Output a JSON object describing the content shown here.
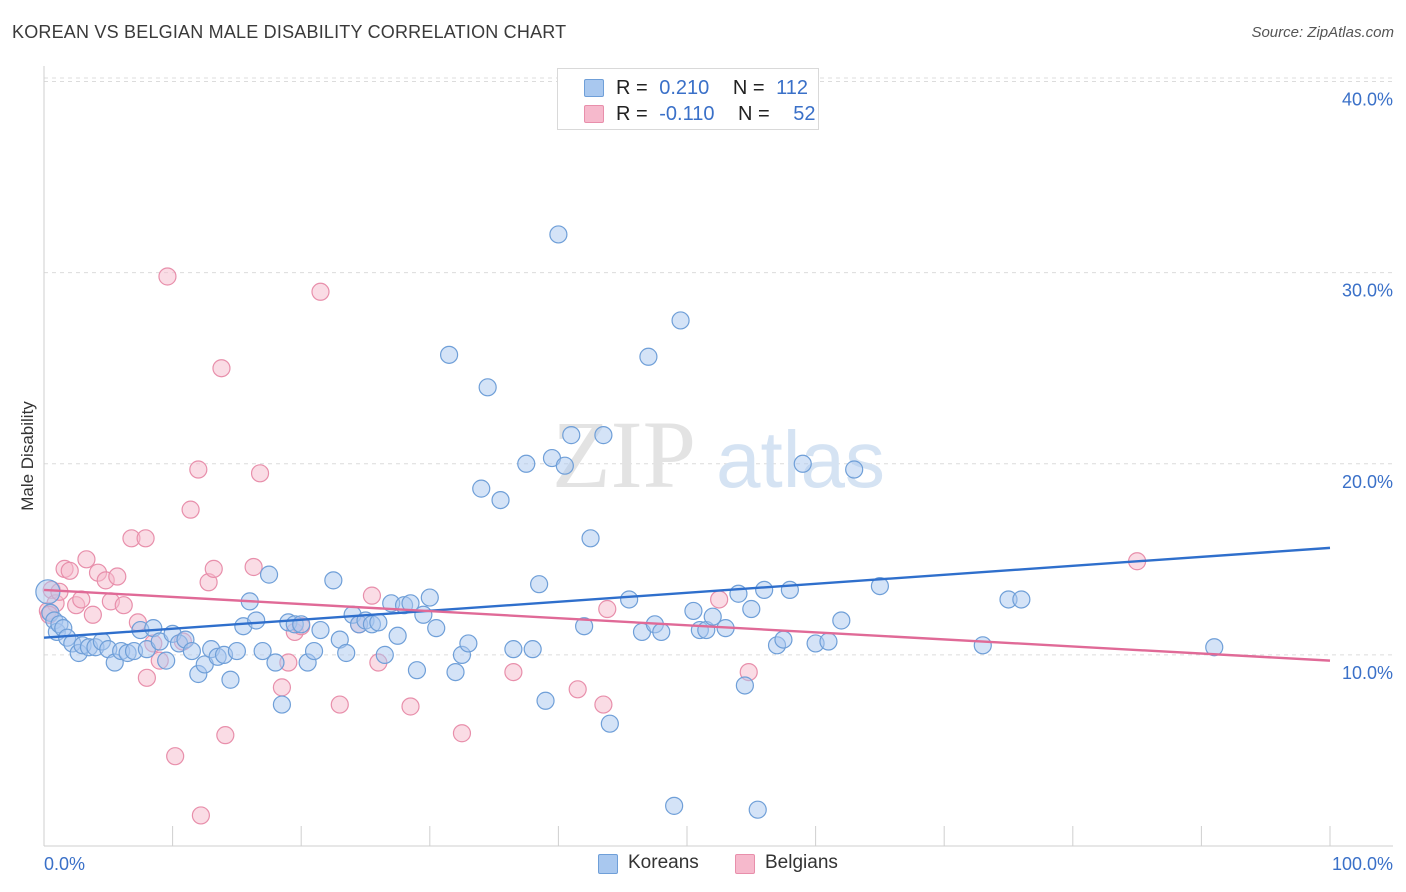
{
  "chart_data": {
    "type": "scatter",
    "title": "KOREAN VS BELGIAN MALE DISABILITY CORRELATION CHART",
    "source": "Source: ZipAtlas.com",
    "ylabel": "Male Disability",
    "xlabel": "",
    "xlim": [
      0,
      100
    ],
    "ylim": [
      0,
      40.5
    ],
    "y_ticks": [
      10,
      20,
      30,
      40
    ],
    "y_tick_labels": [
      "10.0%",
      "20.0%",
      "30.0%",
      "40.0%"
    ],
    "x_tick_labels": [
      "0.0%",
      "100.0%"
    ],
    "watermark": [
      "ZIP",
      "atlas"
    ],
    "legend": {
      "rows": [
        {
          "r_label": "R =",
          "r_value": "0.210",
          "n_label": "N =",
          "n_value": "112",
          "color": "#a9c8ef"
        },
        {
          "r_label": "R =",
          "r_value": "-0.110",
          "n_label": "N =",
          "n_value": "52",
          "color": "#f6b9cc"
        }
      ]
    },
    "series": [
      {
        "name": "Koreans",
        "color": "#a9c8ef",
        "stroke": "#6f9fd8",
        "trend": {
          "x": [
            0,
            100
          ],
          "y": [
            10.9,
            15.6
          ],
          "color": "#2f6fcc"
        },
        "points": [
          [
            0.3,
            13.3
          ],
          [
            0.5,
            12.2
          ],
          [
            0.8,
            11.8
          ],
          [
            1.0,
            11.2
          ],
          [
            1.2,
            11.6
          ],
          [
            1.5,
            11.4
          ],
          [
            1.8,
            10.9
          ],
          [
            2.2,
            10.6
          ],
          [
            2.7,
            10.1
          ],
          [
            3.0,
            10.5
          ],
          [
            3.5,
            10.4
          ],
          [
            4.0,
            10.4
          ],
          [
            4.5,
            10.7
          ],
          [
            5.0,
            10.3
          ],
          [
            5.5,
            9.6
          ],
          [
            6.0,
            10.2
          ],
          [
            6.5,
            10.1
          ],
          [
            7.0,
            10.2
          ],
          [
            7.5,
            11.3
          ],
          [
            8.0,
            10.3
          ],
          [
            8.5,
            11.4
          ],
          [
            9.0,
            10.7
          ],
          [
            9.5,
            9.7
          ],
          [
            10.0,
            11.1
          ],
          [
            10.5,
            10.6
          ],
          [
            11.0,
            10.8
          ],
          [
            11.5,
            10.2
          ],
          [
            12.0,
            9.0
          ],
          [
            12.5,
            9.5
          ],
          [
            13.0,
            10.3
          ],
          [
            13.5,
            9.9
          ],
          [
            14.0,
            10.0
          ],
          [
            14.5,
            8.7
          ],
          [
            15.0,
            10.2
          ],
          [
            15.5,
            11.5
          ],
          [
            16.0,
            12.8
          ],
          [
            16.5,
            11.8
          ],
          [
            17.0,
            10.2
          ],
          [
            17.5,
            14.2
          ],
          [
            18.0,
            9.6
          ],
          [
            18.5,
            7.4
          ],
          [
            19.0,
            11.7
          ],
          [
            19.5,
            11.6
          ],
          [
            20.0,
            11.6
          ],
          [
            20.5,
            9.6
          ],
          [
            21.0,
            10.2
          ],
          [
            21.5,
            11.3
          ],
          [
            22.5,
            13.9
          ],
          [
            23.0,
            10.8
          ],
          [
            23.5,
            10.1
          ],
          [
            24.0,
            12.1
          ],
          [
            24.5,
            11.6
          ],
          [
            25.0,
            11.8
          ],
          [
            25.5,
            11.6
          ],
          [
            26.0,
            11.7
          ],
          [
            26.5,
            10.0
          ],
          [
            27.0,
            12.7
          ],
          [
            27.5,
            11.0
          ],
          [
            28.0,
            12.6
          ],
          [
            28.5,
            12.7
          ],
          [
            29.0,
            9.2
          ],
          [
            29.5,
            12.1
          ],
          [
            30.0,
            13.0
          ],
          [
            30.5,
            11.4
          ],
          [
            31.5,
            25.7
          ],
          [
            32.0,
            9.1
          ],
          [
            32.5,
            10.0
          ],
          [
            33.0,
            10.6
          ],
          [
            34.0,
            18.7
          ],
          [
            34.5,
            24.0
          ],
          [
            35.5,
            18.1
          ],
          [
            36.5,
            10.3
          ],
          [
            37.5,
            20.0
          ],
          [
            38.0,
            10.3
          ],
          [
            38.5,
            13.7
          ],
          [
            39.0,
            7.6
          ],
          [
            39.5,
            20.3
          ],
          [
            40.5,
            19.9
          ],
          [
            40.0,
            32.0
          ],
          [
            41.0,
            21.5
          ],
          [
            42.0,
            11.5
          ],
          [
            42.5,
            16.1
          ],
          [
            43.5,
            21.5
          ],
          [
            44.0,
            6.4
          ],
          [
            45.5,
            12.9
          ],
          [
            46.5,
            11.2
          ],
          [
            47.0,
            25.6
          ],
          [
            47.5,
            11.6
          ],
          [
            48.0,
            11.2
          ],
          [
            49.0,
            2.1
          ],
          [
            49.5,
            27.5
          ],
          [
            50.5,
            12.3
          ],
          [
            51.0,
            11.3
          ],
          [
            51.5,
            11.3
          ],
          [
            52.0,
            12.0
          ],
          [
            53.0,
            11.4
          ],
          [
            54.0,
            13.2
          ],
          [
            54.5,
            8.4
          ],
          [
            55.0,
            12.4
          ],
          [
            56.0,
            13.4
          ],
          [
            55.5,
            1.9
          ],
          [
            57.0,
            10.5
          ],
          [
            57.5,
            10.8
          ],
          [
            58.0,
            13.4
          ],
          [
            59.0,
            20.0
          ],
          [
            60.0,
            10.6
          ],
          [
            61.0,
            10.7
          ],
          [
            62.0,
            11.8
          ],
          [
            63.0,
            19.7
          ],
          [
            65.0,
            13.6
          ],
          [
            73.0,
            10.5
          ],
          [
            75.0,
            12.9
          ],
          [
            76.0,
            12.9
          ],
          [
            91.0,
            10.4
          ]
        ]
      },
      {
        "name": "Belgians",
        "color": "#f6b9cc",
        "stroke": "#e88fab",
        "trend": {
          "x": [
            0,
            100
          ],
          "y": [
            13.4,
            9.7
          ],
          "color": "#e06a97"
        },
        "points": [
          [
            0.3,
            12.3
          ],
          [
            0.6,
            13.4
          ],
          [
            0.9,
            12.7
          ],
          [
            1.2,
            13.3
          ],
          [
            1.6,
            14.5
          ],
          [
            2.0,
            14.4
          ],
          [
            2.5,
            12.6
          ],
          [
            2.9,
            12.9
          ],
          [
            3.3,
            15.0
          ],
          [
            3.8,
            12.1
          ],
          [
            4.2,
            14.3
          ],
          [
            4.8,
            13.9
          ],
          [
            5.2,
            12.8
          ],
          [
            5.7,
            14.1
          ],
          [
            6.2,
            12.6
          ],
          [
            6.8,
            16.1
          ],
          [
            7.3,
            11.7
          ],
          [
            7.9,
            16.1
          ],
          [
            8.5,
            10.6
          ],
          [
            9.0,
            9.7
          ],
          [
            9.6,
            29.8
          ],
          [
            10.2,
            4.7
          ],
          [
            10.8,
            10.7
          ],
          [
            11.4,
            17.6
          ],
          [
            12.0,
            19.7
          ],
          [
            12.2,
            1.6
          ],
          [
            12.8,
            13.8
          ],
          [
            13.2,
            14.5
          ],
          [
            13.8,
            25.0
          ],
          [
            14.1,
            5.8
          ],
          [
            16.3,
            14.6
          ],
          [
            16.8,
            19.5
          ],
          [
            18.5,
            8.3
          ],
          [
            19.0,
            9.6
          ],
          [
            19.5,
            11.2
          ],
          [
            20.0,
            11.5
          ],
          [
            21.5,
            29.0
          ],
          [
            23.0,
            7.4
          ],
          [
            24.5,
            11.6
          ],
          [
            25.5,
            13.1
          ],
          [
            26.0,
            9.6
          ],
          [
            28.5,
            7.3
          ],
          [
            32.5,
            5.9
          ],
          [
            36.5,
            9.1
          ],
          [
            41.5,
            8.2
          ],
          [
            43.5,
            7.4
          ],
          [
            43.8,
            12.4
          ],
          [
            52.5,
            12.9
          ],
          [
            54.8,
            9.1
          ],
          [
            85.0,
            14.9
          ],
          [
            8.0,
            8.8
          ],
          [
            0.4,
            12.1
          ]
        ]
      }
    ]
  }
}
